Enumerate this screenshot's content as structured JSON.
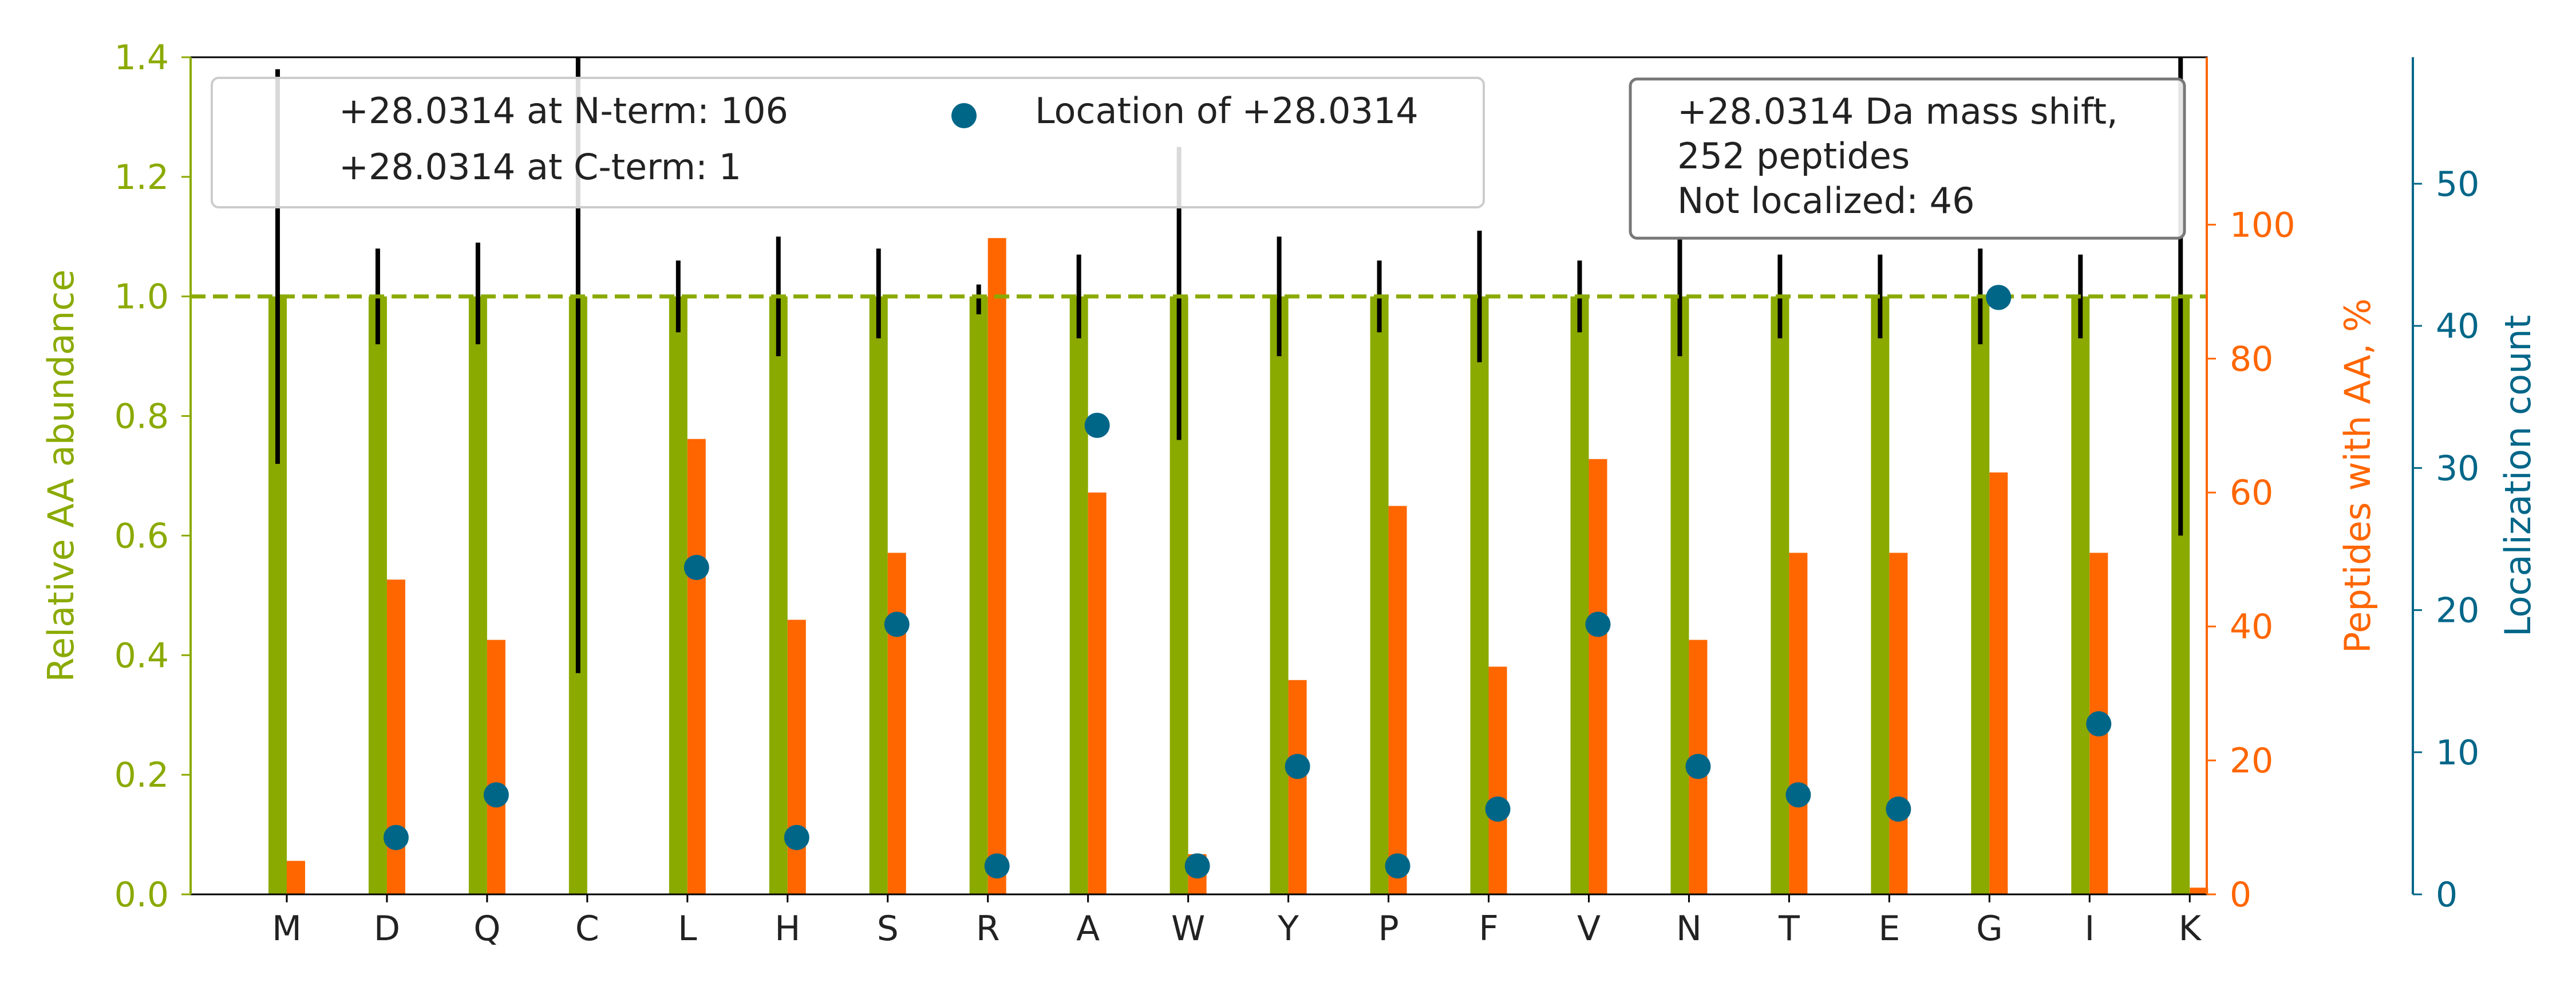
{
  "chart_data": {
    "type": "bar",
    "categories": [
      "M",
      "D",
      "Q",
      "C",
      "L",
      "H",
      "S",
      "R",
      "A",
      "W",
      "Y",
      "P",
      "F",
      "V",
      "N",
      "T",
      "E",
      "G",
      "I",
      "K"
    ],
    "axes": {
      "left": {
        "label": "Relative AA abundance",
        "range": [
          0,
          1.4
        ],
        "ticks": [
          0.0,
          0.2,
          0.4,
          0.6,
          0.8,
          1.0,
          1.2,
          1.4
        ],
        "color": "#8aaa00"
      },
      "right1": {
        "label": "Peptides with AA, %",
        "range": [
          0,
          125
        ],
        "ticks": [
          0,
          20,
          40,
          60,
          80,
          100
        ],
        "color": "#ff6600"
      },
      "right2": {
        "label": "Localization count",
        "range": [
          0,
          58.9
        ],
        "ticks": [
          0,
          10,
          20,
          30,
          40,
          50
        ],
        "color": "#006688"
      }
    },
    "reference_line": {
      "y": 1.0,
      "style": "dashed"
    },
    "relative_abundance": {
      "values": [
        1,
        1,
        1,
        1,
        1,
        1,
        1,
        1,
        1,
        1,
        1,
        1,
        1,
        1,
        1,
        1,
        1,
        1,
        1,
        1
      ],
      "error_low": [
        0.72,
        0.92,
        0.92,
        0.37,
        0.94,
        0.9,
        0.93,
        0.97,
        0.93,
        0.76,
        0.9,
        0.94,
        0.89,
        0.94,
        0.9,
        0.93,
        0.93,
        0.92,
        0.93,
        0.6
      ],
      "error_high": [
        1.38,
        1.08,
        1.09,
        1.4,
        1.06,
        1.1,
        1.08,
        1.02,
        1.07,
        1.25,
        1.1,
        1.06,
        1.11,
        1.06,
        1.1,
        1.07,
        1.07,
        1.08,
        1.07,
        1.4
      ]
    },
    "peptides_pct": [
      5,
      47,
      38,
      0,
      68,
      41,
      51,
      98,
      60,
      6,
      32,
      58,
      34,
      65,
      38,
      51,
      51,
      63,
      51,
      1
    ],
    "localization_count": [
      null,
      4,
      7,
      null,
      23,
      4,
      19,
      2,
      33,
      2,
      9,
      2,
      6,
      19,
      9,
      7,
      6,
      42,
      12,
      null
    ],
    "legend": {
      "items": [
        "+28.0314 at N-term: 106",
        "+28.0314 at C-term: 1",
        "Location of +28.0314"
      ],
      "placement": "top-left"
    },
    "info_box": {
      "lines": [
        "+28.0314 Da mass shift,",
        "252 peptides",
        "Not localized: 46"
      ],
      "placement": "top-right"
    }
  }
}
